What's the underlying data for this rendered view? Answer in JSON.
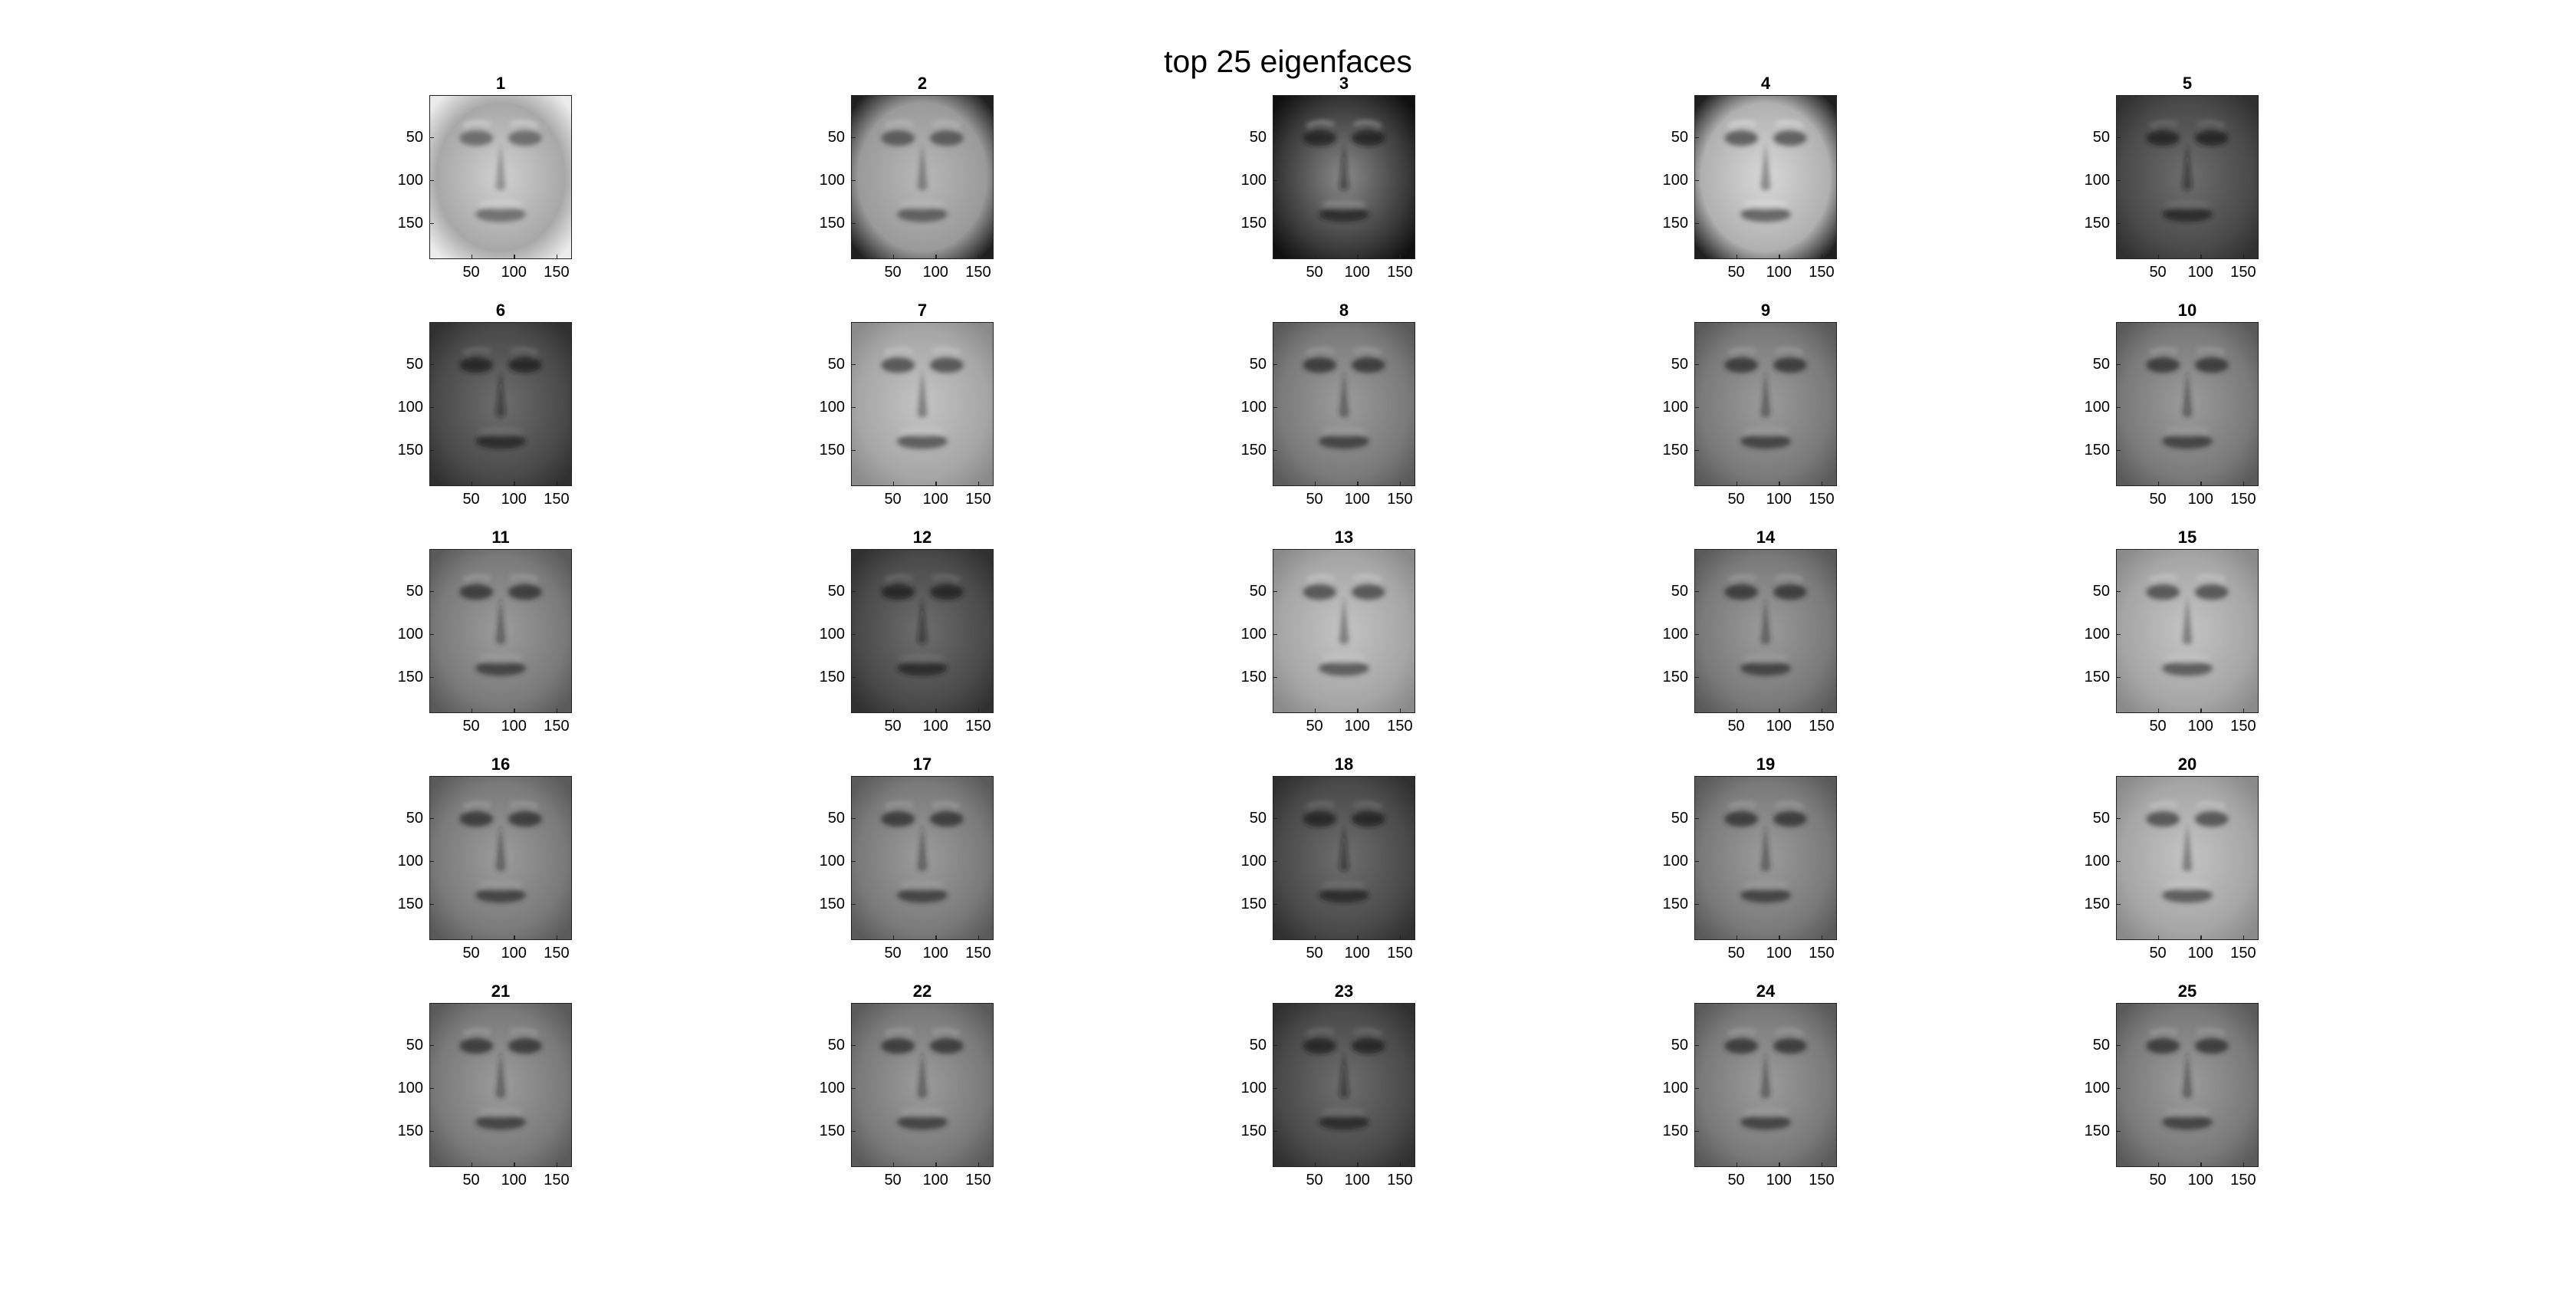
{
  "figure": {
    "title": "top 25 eigenfaces",
    "grid": {
      "rows": 5,
      "cols": 5
    },
    "panels": [
      {
        "title": "1",
        "tone": "light-dark-blur"
      },
      {
        "title": "2",
        "tone": "left-light-right-dark"
      },
      {
        "title": "3",
        "tone": "dark-center-light"
      },
      {
        "title": "4",
        "tone": "light-face-dark-left"
      },
      {
        "title": "5",
        "tone": "dark-face"
      },
      {
        "title": "6",
        "tone": "dark-face"
      },
      {
        "title": "7",
        "tone": "light-face"
      },
      {
        "title": "8",
        "tone": "mid-face"
      },
      {
        "title": "9",
        "tone": "mid-face"
      },
      {
        "title": "10",
        "tone": "mid-face"
      },
      {
        "title": "11",
        "tone": "mid-face"
      },
      {
        "title": "12",
        "tone": "dark-face"
      },
      {
        "title": "13",
        "tone": "light-face"
      },
      {
        "title": "14",
        "tone": "mid-face"
      },
      {
        "title": "15",
        "tone": "light-face"
      },
      {
        "title": "16",
        "tone": "mid-face"
      },
      {
        "title": "17",
        "tone": "mid-face"
      },
      {
        "title": "18",
        "tone": "dark-face"
      },
      {
        "title": "19",
        "tone": "mid-face"
      },
      {
        "title": "20",
        "tone": "light-face"
      },
      {
        "title": "21",
        "tone": "mid-face"
      },
      {
        "title": "22",
        "tone": "mid-face"
      },
      {
        "title": "23",
        "tone": "dark-face"
      },
      {
        "title": "24",
        "tone": "mid-face"
      },
      {
        "title": "25",
        "tone": "mid-face"
      }
    ],
    "axes": {
      "xticks": [
        "50",
        "100",
        "150"
      ],
      "yticks": [
        "50",
        "100",
        "150"
      ],
      "xlim": [
        1,
        168
      ],
      "ylim": [
        1,
        192
      ],
      "colormap": "gray"
    }
  }
}
